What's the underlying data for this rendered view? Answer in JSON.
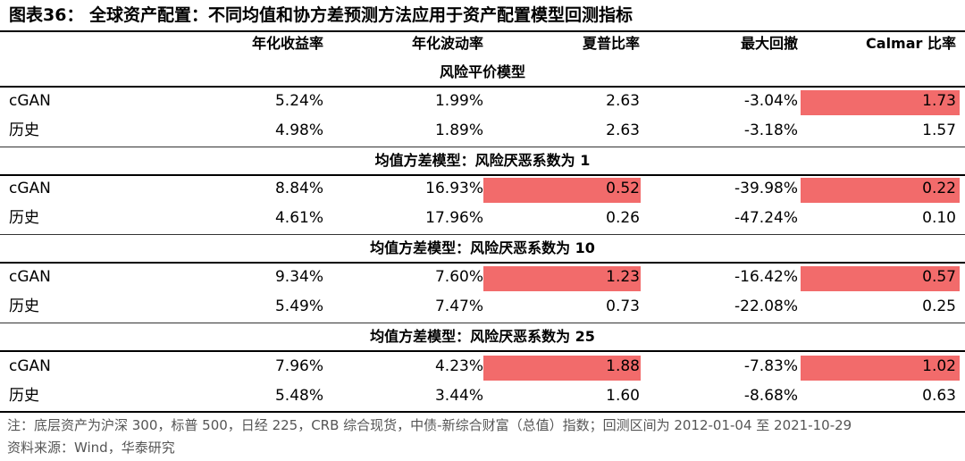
{
  "title": "图表36：  全球资产配置：不同均值和协方差预测方法应用于资产配置模型回测指标",
  "headers": [
    "年化收益率",
    "年化波动率",
    "夏普比率",
    "最大回撤",
    "Calmar 比率"
  ],
  "sections": [
    {
      "title": "风险平价模型",
      "rows": [
        {
          "label": "cGAN",
          "values": [
            "5.24%",
            "1.99%",
            "2.63",
            "-3.04%",
            "1.73"
          ],
          "highlight": [
            false,
            false,
            false,
            false,
            true
          ]
        },
        {
          "label": "历史",
          "values": [
            "4.98%",
            "1.89%",
            "2.63",
            "-3.18%",
            "1.57"
          ],
          "highlight": [
            false,
            false,
            false,
            false,
            false
          ]
        }
      ]
    },
    {
      "title": "均值方差模型：风险厌恶系数为 1",
      "rows": [
        {
          "label": "cGAN",
          "values": [
            "8.84%",
            "16.93%",
            "0.52",
            "-39.98%",
            "0.22"
          ],
          "highlight": [
            false,
            false,
            true,
            false,
            true
          ]
        },
        {
          "label": "历史",
          "values": [
            "4.61%",
            "17.96%",
            "0.26",
            "-47.24%",
            "0.10"
          ],
          "highlight": [
            false,
            false,
            false,
            false,
            false
          ]
        }
      ]
    },
    {
      "title": "均值方差模型：风险厌恶系数为 10",
      "rows": [
        {
          "label": "cGAN",
          "values": [
            "9.34%",
            "7.60%",
            "1.23",
            "-16.42%",
            "0.57"
          ],
          "highlight": [
            false,
            false,
            true,
            false,
            true
          ]
        },
        {
          "label": "历史",
          "values": [
            "5.49%",
            "7.47%",
            "0.73",
            "-22.08%",
            "0.25"
          ],
          "highlight": [
            false,
            false,
            false,
            false,
            false
          ]
        }
      ]
    },
    {
      "title": "均值方差模型：风险厌恶系数为 25",
      "rows": [
        {
          "label": "cGAN",
          "values": [
            "7.96%",
            "4.23%",
            "1.88",
            "-7.83%",
            "1.02"
          ],
          "highlight": [
            false,
            false,
            true,
            false,
            true
          ]
        },
        {
          "label": "历史",
          "values": [
            "5.48%",
            "3.44%",
            "1.60",
            "-8.68%",
            "0.63"
          ],
          "highlight": [
            false,
            false,
            false,
            false,
            false
          ]
        }
      ]
    }
  ],
  "note": "注：底层资产为沪深 300，标普 500，日经 225，CRB 综合现货，中债-新综合财富（总值）指数；回测区间为 2012-01-04 至 2021-10-29",
  "source": "资料来源：Wind，华泰研究",
  "colors": {
    "highlight": "#f26b6b"
  }
}
